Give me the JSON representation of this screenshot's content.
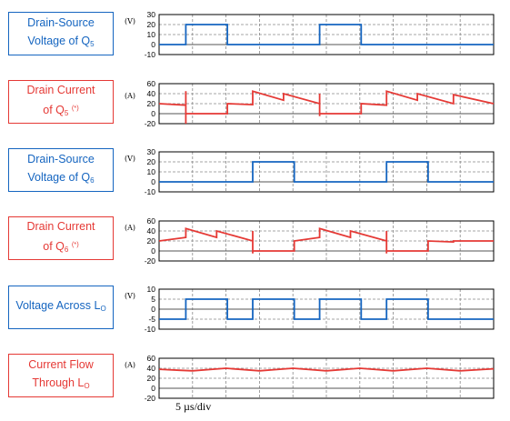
{
  "colors": {
    "blue": "#1565c0",
    "red": "#e53935",
    "grid": "#888888",
    "frame": "#000000"
  },
  "time_scale": "5 µs/div",
  "chart_data": [
    {
      "type": "line",
      "label": {
        "lines": [
          [
            "Drain-Source"
          ],
          [
            "Voltage of Q",
            {
              "sub": "5"
            }
          ]
        ]
      },
      "unit": "(V)",
      "color": "#1565c0",
      "yticks": [
        "30",
        "20",
        "10",
        "0",
        "-10"
      ],
      "ylim": [
        -10,
        30
      ],
      "xlim": [
        0,
        50
      ],
      "grid": true,
      "x": [
        0,
        4,
        4,
        10.2,
        10.2,
        24,
        24,
        30.2,
        30.2,
        50
      ],
      "y": [
        0,
        0,
        20,
        20,
        0,
        0,
        20,
        20,
        0,
        0
      ]
    },
    {
      "type": "line",
      "label": {
        "lines": [
          [
            "Drain Current"
          ],
          [
            "of Q",
            {
              "sub": "5"
            },
            " ",
            {
              "sup": "(*)"
            }
          ]
        ]
      },
      "unit": "(A)",
      "color": "#e53935",
      "yticks": [
        "60",
        "40",
        "20",
        "0",
        "-20"
      ],
      "ylim": [
        -20,
        60
      ],
      "xlim": [
        0,
        50
      ],
      "grid": true,
      "x": [
        0,
        4,
        4,
        4,
        4,
        10.2,
        10.2,
        14,
        14,
        18.6,
        18.6,
        24,
        24,
        24,
        24,
        30.2,
        30.2,
        34,
        34,
        38.6,
        38.6,
        44,
        44,
        50
      ],
      "y": [
        20,
        17,
        45,
        -20,
        0,
        0,
        20,
        18,
        45,
        27,
        40,
        20,
        40,
        -5,
        0,
        0,
        20,
        17,
        45,
        27,
        40,
        20,
        38,
        20
      ]
    },
    {
      "type": "line",
      "label": {
        "lines": [
          [
            "Drain-Source"
          ],
          [
            "Voltage of Q",
            {
              "sub": "6"
            }
          ]
        ]
      },
      "unit": "(V)",
      "color": "#1565c0",
      "yticks": [
        "30",
        "20",
        "10",
        "0",
        "-10"
      ],
      "ylim": [
        -10,
        30
      ],
      "xlim": [
        0,
        50
      ],
      "grid": true,
      "x": [
        0,
        14,
        14,
        20.2,
        20.2,
        34,
        34,
        40.2,
        40.2,
        50
      ],
      "y": [
        0,
        0,
        20,
        20,
        0,
        0,
        20,
        20,
        0,
        0
      ]
    },
    {
      "type": "line",
      "label": {
        "lines": [
          [
            "Drain Current"
          ],
          [
            "of Q",
            {
              "sub": "6"
            },
            " ",
            {
              "sup": "(*)"
            }
          ]
        ]
      },
      "unit": "(A)",
      "color": "#e53935",
      "yticks": [
        "60",
        "40",
        "20",
        "0",
        "-20"
      ],
      "ylim": [
        -20,
        60
      ],
      "xlim": [
        0,
        50
      ],
      "grid": true,
      "x": [
        0,
        4,
        4,
        8.6,
        8.6,
        14,
        14,
        14,
        14,
        20.2,
        20.2,
        24,
        24,
        28.6,
        28.6,
        34,
        34,
        34,
        34,
        40.2,
        40.2,
        44,
        44,
        50
      ],
      "y": [
        20,
        27,
        45,
        27,
        40,
        20,
        40,
        -5,
        0,
        0,
        20,
        27,
        45,
        27,
        40,
        20,
        40,
        -5,
        0,
        0,
        20,
        18,
        20,
        20
      ]
    },
    {
      "type": "line",
      "label": {
        "lines": [
          [
            "Voltage Across L",
            {
              "sub": "O"
            }
          ]
        ]
      },
      "unit": "(V)",
      "color": "#1565c0",
      "yticks": [
        "10",
        "5",
        "0",
        "-5",
        "-10"
      ],
      "ylim": [
        -10,
        10
      ],
      "xlim": [
        0,
        50
      ],
      "grid": true,
      "x": [
        0,
        4,
        4,
        10.2,
        10.2,
        14,
        14,
        20.2,
        20.2,
        24,
        24,
        30.2,
        30.2,
        34,
        34,
        40.2,
        40.2,
        50
      ],
      "y": [
        -5,
        -5,
        5,
        5,
        -5,
        -5,
        5,
        5,
        -5,
        -5,
        5,
        5,
        -5,
        -5,
        5,
        5,
        -5,
        -5
      ]
    },
    {
      "type": "line",
      "label": {
        "lines": [
          [
            "Current Flow"
          ],
          [
            "Through L",
            {
              "sub": "O"
            }
          ]
        ]
      },
      "unit": "(A)",
      "color": "#e53935",
      "yticks": [
        "60",
        "40",
        "20",
        "0",
        "-20"
      ],
      "ylim": [
        -20,
        60
      ],
      "xlim": [
        0,
        50
      ],
      "grid": true,
      "x": [
        0,
        3,
        5,
        10,
        15,
        20,
        25,
        30,
        35,
        40,
        45,
        50
      ],
      "y": [
        38,
        36,
        35,
        40,
        35,
        40,
        35,
        40,
        35,
        40,
        35,
        39
      ]
    }
  ]
}
